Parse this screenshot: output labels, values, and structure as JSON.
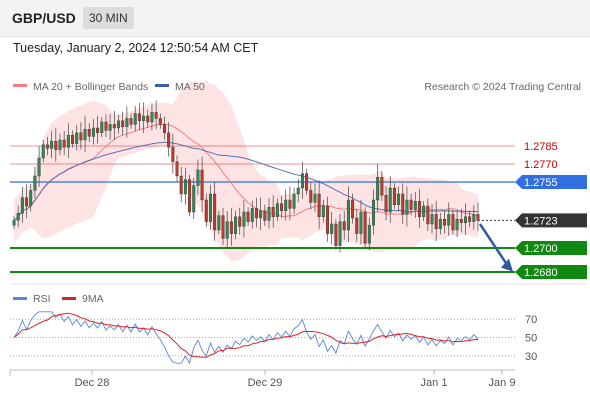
{
  "header": {
    "pair": "GBP/USD",
    "timeframe": "30 MIN",
    "datetime": "Tuesday, January 2, 2024 12:50:54 AM CET"
  },
  "legend": {
    "ma20_label": "MA 20 + Bollinger Bands",
    "ma50_label": "MA 50",
    "credit": "Research © 2024 Trading Central",
    "rsi_label": "RSI",
    "rsi_ma_label": "9MA"
  },
  "colors": {
    "ma20": "#f08080",
    "ma50": "#3a5fa8",
    "band_fill": "#fde0e0",
    "resistance": "#cc0000",
    "pivot": "#2f6fe0",
    "support": "#118811",
    "current": "#333333",
    "arrow": "#2f5a9e",
    "rsi": "#5b86d6",
    "rsi_ma": "#dd2222",
    "candle_up": "#2e8b57",
    "candle_down": "#c0392b"
  },
  "chart_data": {
    "type": "candlestick",
    "symbol": "GBP/USD",
    "price_axis_labels": [
      {
        "value": 1.2785,
        "label": "1.2785",
        "kind": "resistance"
      },
      {
        "value": 1.277,
        "label": "1.2770",
        "kind": "resistance"
      },
      {
        "value": 1.2755,
        "label": "1.2755",
        "kind": "pivot"
      },
      {
        "value": 1.2723,
        "label": "1.2723",
        "kind": "current"
      },
      {
        "value": 1.27,
        "label": "1.2700",
        "kind": "support"
      },
      {
        "value": 1.268,
        "label": "1.2680",
        "kind": "support"
      }
    ],
    "price_range": [
      1.2675,
      1.2825
    ],
    "x_ticks": [
      "Dec 28",
      "Dec 29",
      "Jan 1",
      "Jan 9"
    ],
    "closes": [
      1.2723,
      1.2729,
      1.2742,
      1.2735,
      1.2748,
      1.276,
      1.2775,
      1.2786,
      1.2783,
      1.2789,
      1.2782,
      1.279,
      1.2784,
      1.2794,
      1.2787,
      1.2796,
      1.279,
      1.2799,
      1.2793,
      1.28,
      1.2796,
      1.2805,
      1.2798,
      1.2803,
      1.28,
      1.2806,
      1.2801,
      1.2808,
      1.2803,
      1.2812,
      1.2806,
      1.281,
      1.2805,
      1.2813,
      1.2808,
      1.2803,
      1.2796,
      1.2784,
      1.2772,
      1.276,
      1.2745,
      1.2757,
      1.273,
      1.2752,
      1.2765,
      1.274,
      1.2722,
      1.2745,
      1.2715,
      1.2727,
      1.2708,
      1.2722,
      1.2712,
      1.2726,
      1.2718,
      1.273,
      1.2722,
      1.2733,
      1.2725,
      1.2731,
      1.2723,
      1.2734,
      1.2726,
      1.2737,
      1.2731,
      1.274,
      1.2733,
      1.2745,
      1.275,
      1.2762,
      1.2748,
      1.2738,
      1.2745,
      1.2726,
      1.2735,
      1.2712,
      1.272,
      1.2702,
      1.2722,
      1.2715,
      1.274,
      1.2725,
      1.2712,
      1.273,
      1.2704,
      1.2719,
      1.274,
      1.2759,
      1.2744,
      1.273,
      1.275,
      1.2736,
      1.2745,
      1.2728,
      1.274,
      1.2732,
      1.2739,
      1.2726,
      1.2735,
      1.272,
      1.2728,
      1.2716,
      1.2724,
      1.2719,
      1.2728,
      1.2715,
      1.2724,
      1.2721,
      1.2726,
      1.2722,
      1.2728,
      1.2723
    ],
    "rsi": {
      "levels": [
        70,
        50,
        30
      ],
      "range": [
        20,
        80
      ]
    }
  }
}
